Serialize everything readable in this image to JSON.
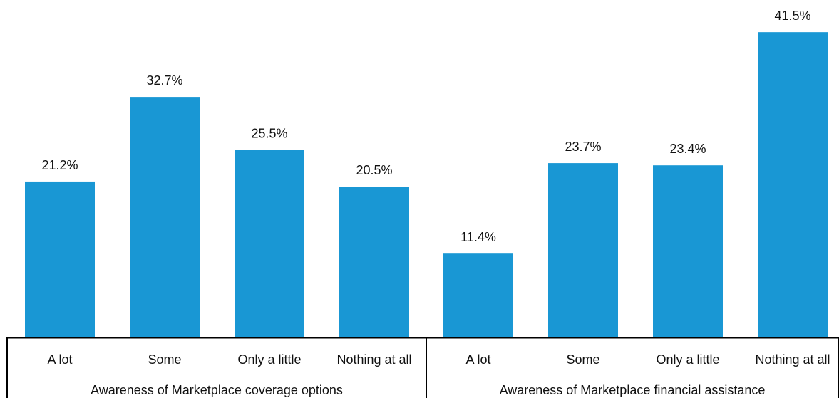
{
  "chart_data": {
    "type": "bar",
    "bar_color": "#1997d4",
    "value_suffix": "%",
    "ylim": [
      0,
      42
    ],
    "groups": [
      {
        "label": "Awareness of Marketplace coverage options",
        "categories": [
          "A lot",
          "Some",
          "Only a little",
          "Nothing at all"
        ],
        "values": [
          21.2,
          32.7,
          25.5,
          20.5
        ]
      },
      {
        "label": "Awareness of Marketplace financial assistance",
        "categories": [
          "A lot",
          "Some",
          "Only a little",
          "Nothing at all"
        ],
        "values": [
          11.4,
          23.7,
          23.4,
          41.5
        ]
      }
    ]
  }
}
